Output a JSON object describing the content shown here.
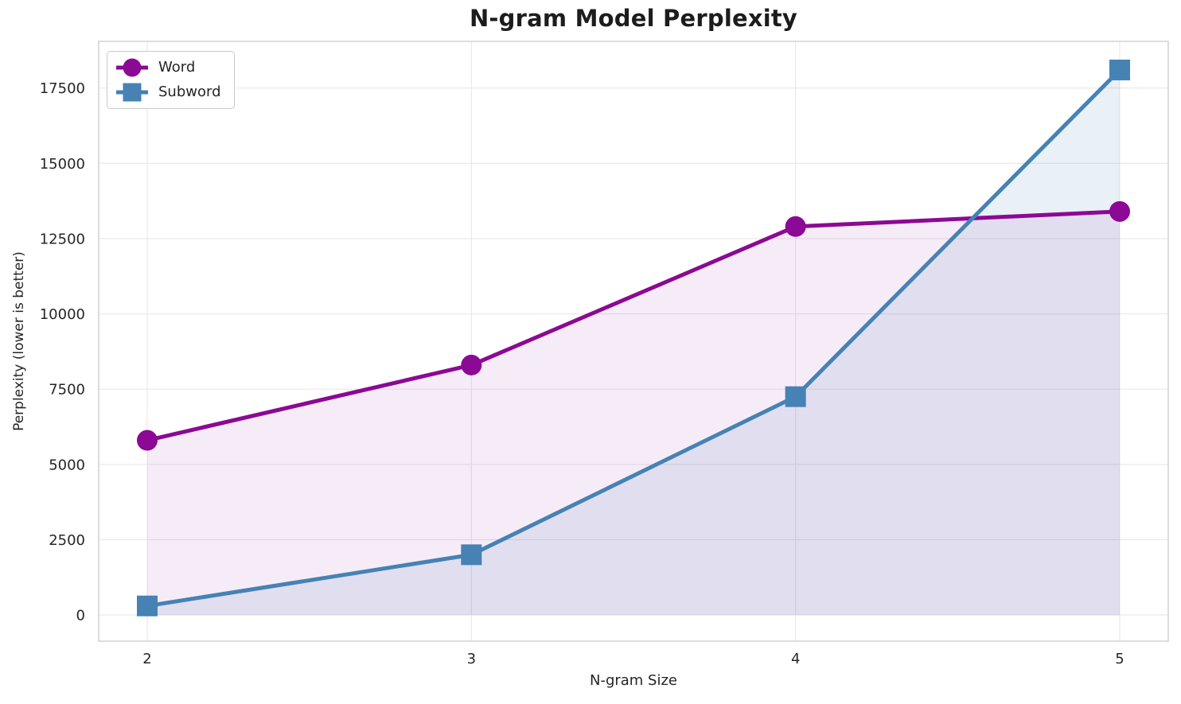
{
  "chart_data": {
    "type": "line",
    "title": "N-gram Model Perplexity",
    "xlabel": "N-gram Size",
    "ylabel": "Perplexity (lower is better)",
    "categories": [
      "2",
      "3",
      "4",
      "5"
    ],
    "yticks": [
      0,
      2500,
      5000,
      7500,
      10000,
      12500,
      15000,
      17500
    ],
    "ylim": [
      -870,
      19050
    ],
    "grid": true,
    "legend_position": "upper-left",
    "area_fill_baseline": 0,
    "series": [
      {
        "name": "Word",
        "marker": "circle",
        "color": "#8B0994",
        "fill_opacity": 0.08,
        "values": [
          5800,
          8300,
          12900,
          13400
        ]
      },
      {
        "name": "Subword",
        "marker": "square",
        "color": "#4682B4",
        "fill_opacity": 0.12,
        "values": [
          300,
          2000,
          7250,
          18100
        ]
      }
    ],
    "colors": {
      "grid": "#e8e8e8",
      "spine": "#d2d2d2",
      "text": "#262626"
    }
  }
}
